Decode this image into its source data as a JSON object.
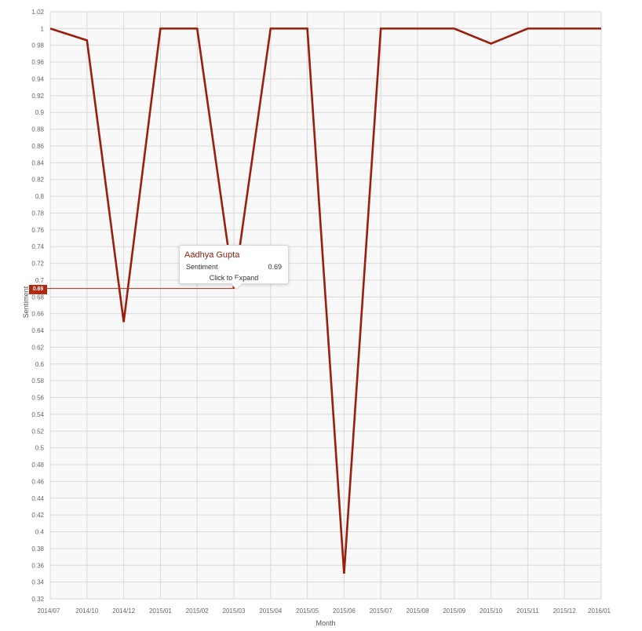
{
  "chart_data": {
    "type": "line",
    "title": "",
    "xlabel": "Month",
    "ylabel": "Sentiment",
    "ylim": [
      0.32,
      1.02
    ],
    "ytick_step": 0.02,
    "grid": true,
    "categories": [
      "2014/07",
      "2014/10",
      "2014/12",
      "2015/01",
      "2015/02",
      "2015/03",
      "2015/04",
      "2015/05",
      "2015/06",
      "2015/07",
      "2015/08",
      "2015/09",
      "2015/10",
      "2015/11",
      "2015/12",
      "2016/01"
    ],
    "series": [
      {
        "name": "Sentiment",
        "values": [
          1,
          0.986,
          0.65,
          1,
          1,
          0.69,
          1,
          1,
          0.35,
          1,
          1,
          1,
          0.982,
          1,
          1,
          1
        ]
      }
    ],
    "colors": {
      "line": "#9b1e0a",
      "badge": "#b5290f",
      "grid": "#d9d9d9",
      "plot_bg": "#f8f8f8"
    }
  },
  "tooltip": {
    "name": "Aadhya Gupta",
    "metric_label": "Sentiment",
    "metric_value": "0.69",
    "action_label": "Click to Expand"
  },
  "crosshair": {
    "value_label": "0.69",
    "y_value": 0.69,
    "category_index": 5
  }
}
